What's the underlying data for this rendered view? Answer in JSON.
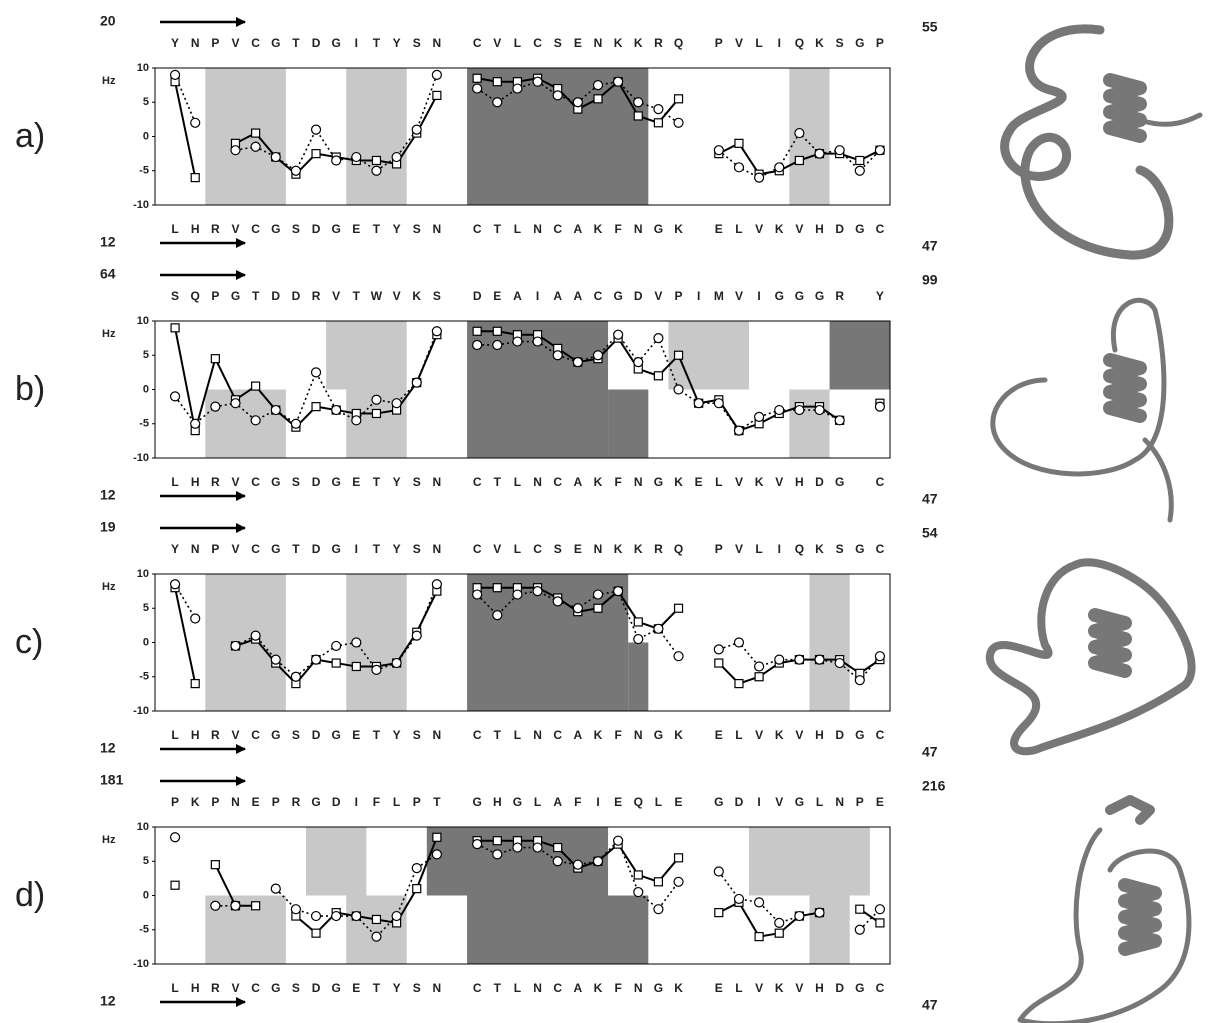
{
  "chart_data": [
    {
      "type": "line",
      "panel_label": "a)",
      "start_top": 20,
      "end_top": 55,
      "start_bottom": 12,
      "end_bottom": 47,
      "ylabel": "Hz",
      "top_sequence": [
        "Y",
        "N",
        "P",
        "V",
        "C",
        "G",
        "T",
        "D",
        "G",
        "I",
        "T",
        "Y",
        "S",
        "N",
        null,
        "C",
        "V",
        "L",
        "C",
        "S",
        "E",
        "N",
        "K",
        "K",
        "R",
        "Q",
        null,
        "P",
        "V",
        "L",
        "I",
        "Q",
        "K",
        "S",
        "G",
        "P"
      ],
      "categories": [
        "L",
        "H",
        "R",
        "V",
        "C",
        "G",
        "S",
        "D",
        "G",
        "E",
        "T",
        "Y",
        "S",
        "N",
        null,
        "C",
        "T",
        "L",
        "N",
        "C",
        "A",
        "K",
        "F",
        "N",
        "G",
        "K",
        null,
        "E",
        "L",
        "V",
        "K",
        "V",
        "H",
        "D",
        "G",
        "C"
      ],
      "ylim": [
        -10,
        10
      ],
      "yticks": [
        -10,
        -5,
        0,
        5,
        10
      ],
      "series": [
        {
          "color": "#000000",
          "style": "solid",
          "marker": "square",
          "values": [
            8,
            -6,
            null,
            -1,
            0.5,
            -3,
            -5.5,
            -2.5,
            -3,
            -3.5,
            -3.5,
            -4,
            0.5,
            6,
            null,
            8.5,
            8,
            8,
            8.5,
            7,
            4,
            5.5,
            8,
            3,
            2,
            5.5,
            null,
            -2.5,
            -1,
            -5.5,
            -5,
            -3.5,
            -2.5,
            -2.5,
            -3.5,
            -2
          ]
        },
        {
          "color": "#000000",
          "style": "dotted",
          "marker": "circle",
          "values": [
            9,
            2,
            null,
            -2,
            -1.5,
            -3,
            -5,
            1,
            -3.5,
            -3,
            -5,
            -3,
            1,
            9,
            null,
            7,
            5,
            7,
            8,
            6,
            5,
            7.5,
            8,
            5,
            4,
            2,
            null,
            -2,
            -4.5,
            -6,
            -4.5,
            0.5,
            -2.5,
            -2,
            -5,
            -2
          ]
        }
      ],
      "shading": [
        {
          "from": 2,
          "to": 5,
          "y": [
            -10,
            10
          ],
          "color": "#c8c8c8"
        },
        {
          "from": 9,
          "to": 11,
          "y": [
            -10,
            10
          ],
          "color": "#c8c8c8"
        },
        {
          "from": 15,
          "to": 23,
          "y": [
            -10,
            10
          ],
          "color": "#777777"
        },
        {
          "from": 31,
          "to": 32,
          "y": [
            -10,
            10
          ],
          "color": "#c8c8c8"
        }
      ]
    },
    {
      "type": "line",
      "panel_label": "b)",
      "start_top": 64,
      "end_top": 99,
      "start_bottom": 12,
      "end_bottom": 47,
      "ylabel": "Hz",
      "top_sequence": [
        "S",
        "Q",
        "P",
        "G",
        "T",
        "D",
        "D",
        "R",
        "V",
        "T",
        "W",
        "V",
        "K",
        "S",
        null,
        "D",
        "E",
        "A",
        "I",
        "A",
        "A",
        "C",
        "G",
        "D",
        "V",
        "P",
        "I",
        "M",
        "V",
        "I",
        "G",
        "G",
        "G",
        "R",
        null,
        "Y"
      ],
      "categories": [
        "L",
        "H",
        "R",
        "V",
        "C",
        "G",
        "S",
        "D",
        "G",
        "E",
        "T",
        "Y",
        "S",
        "N",
        null,
        "C",
        "T",
        "L",
        "N",
        "C",
        "A",
        "K",
        "F",
        "N",
        "G",
        "K",
        "E",
        "L",
        "V",
        "K",
        "V",
        "H",
        "D",
        "G",
        null,
        "C"
      ],
      "ylim": [
        -10,
        10
      ],
      "yticks": [
        -10,
        -5,
        0,
        5,
        10
      ],
      "series": [
        {
          "color": "#000000",
          "style": "solid",
          "marker": "square",
          "values": [
            9,
            -6,
            4.5,
            -1.5,
            0.5,
            -3,
            -5.5,
            -2.5,
            -3,
            -3.5,
            -3.5,
            -3,
            1,
            8,
            null,
            8.5,
            8.5,
            8,
            8,
            6,
            4,
            4.5,
            7.5,
            3,
            2,
            5,
            -2,
            -1.5,
            -6,
            -5,
            -3.5,
            -2.5,
            -2.5,
            -4.5,
            null,
            -2
          ]
        },
        {
          "color": "#000000",
          "style": "dotted",
          "marker": "circle",
          "values": [
            -1,
            -5,
            -2.5,
            -2,
            -4.5,
            -3,
            -5,
            2.5,
            -3,
            -4.5,
            -1.5,
            -2,
            1,
            8.5,
            null,
            6.5,
            6.5,
            7,
            7,
            5,
            4,
            5,
            8,
            4,
            7.5,
            0,
            -2,
            -2,
            -6,
            -4,
            -3,
            -3,
            -3,
            -4.5,
            null,
            -2.5
          ]
        }
      ],
      "shading": [
        {
          "from": 2,
          "to": 5,
          "y": [
            -10,
            0
          ],
          "color": "#c8c8c8"
        },
        {
          "from": 8,
          "to": 11,
          "y": [
            0,
            10
          ],
          "color": "#c8c8c8"
        },
        {
          "from": 9,
          "to": 11,
          "y": [
            -10,
            0
          ],
          "color": "#c8c8c8"
        },
        {
          "from": 15,
          "to": 21,
          "y": [
            -10,
            10
          ],
          "color": "#777777"
        },
        {
          "from": 22,
          "to": 23,
          "y": [
            -10,
            0
          ],
          "color": "#777777"
        },
        {
          "from": 25,
          "to": 28,
          "y": [
            0,
            10
          ],
          "color": "#c8c8c8"
        },
        {
          "from": 31,
          "to": 32,
          "y": [
            -10,
            0
          ],
          "color": "#c8c8c8"
        },
        {
          "from": 33,
          "to": 35,
          "y": [
            0,
            10
          ],
          "color": "#777777"
        }
      ]
    },
    {
      "type": "line",
      "panel_label": "c)",
      "start_top": 19,
      "end_top": 54,
      "start_bottom": 12,
      "end_bottom": 47,
      "ylabel": "Hz",
      "top_sequence": [
        "Y",
        "N",
        "P",
        "V",
        "C",
        "G",
        "T",
        "D",
        "G",
        "I",
        "T",
        "Y",
        "S",
        "N",
        null,
        "C",
        "V",
        "L",
        "C",
        "S",
        "E",
        "N",
        "K",
        "K",
        "R",
        "Q",
        null,
        "P",
        "V",
        "L",
        "I",
        "Q",
        "K",
        "S",
        "G",
        "C"
      ],
      "categories": [
        "L",
        "H",
        "R",
        "V",
        "C",
        "G",
        "S",
        "D",
        "G",
        "E",
        "T",
        "Y",
        "S",
        "N",
        null,
        "C",
        "T",
        "L",
        "N",
        "C",
        "A",
        "K",
        "F",
        "N",
        "G",
        "K",
        null,
        "E",
        "L",
        "V",
        "K",
        "V",
        "H",
        "D",
        "G",
        "C"
      ],
      "ylim": [
        -10,
        10
      ],
      "yticks": [
        -10,
        -5,
        0,
        5,
        10
      ],
      "series": [
        {
          "color": "#000000",
          "style": "solid",
          "marker": "square",
          "values": [
            8,
            -6,
            null,
            -0.5,
            0.5,
            -3,
            -6,
            -2.5,
            -3,
            -3.5,
            -3.5,
            -3,
            1.5,
            7.5,
            null,
            8,
            8,
            8,
            8,
            6.5,
            4.5,
            5,
            7.5,
            3,
            2,
            5,
            null,
            -3,
            -6,
            -5,
            -3,
            -2.5,
            -2.5,
            -2.5,
            -4.5,
            -2.5
          ]
        },
        {
          "color": "#000000",
          "style": "dotted",
          "marker": "circle",
          "values": [
            8.5,
            3.5,
            null,
            -0.5,
            1,
            -2.5,
            -5,
            -2.5,
            -0.5,
            0,
            -4,
            -3,
            1,
            8.5,
            null,
            7,
            4,
            7,
            7.5,
            6,
            5,
            7,
            7.5,
            0.5,
            2,
            -2,
            null,
            -1,
            0,
            -3.5,
            -2.5,
            -2.5,
            -2.5,
            -3,
            -5.5,
            -2
          ]
        }
      ],
      "shading": [
        {
          "from": 2,
          "to": 5,
          "y": [
            -10,
            10
          ],
          "color": "#c8c8c8"
        },
        {
          "from": 9,
          "to": 11,
          "y": [
            -10,
            10
          ],
          "color": "#c8c8c8"
        },
        {
          "from": 15,
          "to": 22,
          "y": [
            -10,
            10
          ],
          "color": "#777777"
        },
        {
          "from": 23,
          "to": 23,
          "y": [
            -10,
            0
          ],
          "color": "#777777"
        },
        {
          "from": 32,
          "to": 33,
          "y": [
            -10,
            10
          ],
          "color": "#c8c8c8"
        }
      ]
    },
    {
      "type": "line",
      "panel_label": "d)",
      "start_top": 181,
      "end_top": 216,
      "start_bottom": 12,
      "end_bottom": 47,
      "ylabel": "Hz",
      "top_sequence": [
        "P",
        "K",
        "P",
        "N",
        "E",
        "P",
        "R",
        "G",
        "D",
        "I",
        "F",
        "L",
        "P",
        "T",
        null,
        "G",
        "H",
        "G",
        "L",
        "A",
        "F",
        "I",
        "E",
        "Q",
        "L",
        "E",
        null,
        "G",
        "D",
        "I",
        "V",
        "G",
        "L",
        "N",
        "P",
        "E"
      ],
      "categories": [
        "L",
        "H",
        "R",
        "V",
        "C",
        "G",
        "S",
        "D",
        "G",
        "E",
        "T",
        "Y",
        "S",
        "N",
        null,
        "C",
        "T",
        "L",
        "N",
        "C",
        "A",
        "K",
        "F",
        "N",
        "G",
        "K",
        null,
        "E",
        "L",
        "V",
        "K",
        "V",
        "H",
        "D",
        "G",
        "C"
      ],
      "ylim": [
        -10,
        10
      ],
      "yticks": [
        -10,
        -5,
        0,
        5,
        10
      ],
      "series": [
        {
          "color": "#000000",
          "style": "solid",
          "marker": "square",
          "values": [
            1.5,
            null,
            4.5,
            -1.5,
            -1.5,
            null,
            -3,
            -5.5,
            -2.5,
            -3,
            -3.5,
            -4,
            1,
            8.5,
            null,
            8,
            8,
            8,
            8,
            7,
            4,
            5,
            7.5,
            3,
            2,
            5.5,
            null,
            -2.5,
            -1,
            -6,
            -5.5,
            -3,
            -2.5,
            null,
            -2,
            -4
          ]
        },
        {
          "color": "#000000",
          "style": "dotted",
          "marker": "circle",
          "values": [
            8.5,
            null,
            -1.5,
            -1.5,
            null,
            1,
            -2,
            -3,
            -3,
            -3,
            -6,
            -3,
            4,
            6,
            null,
            7.5,
            6,
            7,
            7,
            5,
            4.5,
            5,
            8,
            0.5,
            -2,
            2,
            null,
            3.5,
            -0.5,
            -1,
            -4,
            -3,
            -2.5,
            null,
            -5,
            -2
          ]
        }
      ],
      "shading": [
        {
          "from": 2,
          "to": 5,
          "y": [
            -10,
            0
          ],
          "color": "#c8c8c8"
        },
        {
          "from": 7,
          "to": 9,
          "y": [
            0,
            10
          ],
          "color": "#c8c8c8"
        },
        {
          "from": 9,
          "to": 11,
          "y": [
            -10,
            0
          ],
          "color": "#c8c8c8"
        },
        {
          "from": 13,
          "to": 21,
          "y": [
            0,
            10
          ],
          "color": "#777777"
        },
        {
          "from": 15,
          "to": 23,
          "y": [
            -10,
            0
          ],
          "color": "#777777"
        },
        {
          "from": 29,
          "to": 34,
          "y": [
            0,
            10
          ],
          "color": "#c8c8c8"
        },
        {
          "from": 32,
          "to": 33,
          "y": [
            -10,
            0
          ],
          "color": "#c8c8c8"
        }
      ]
    }
  ]
}
